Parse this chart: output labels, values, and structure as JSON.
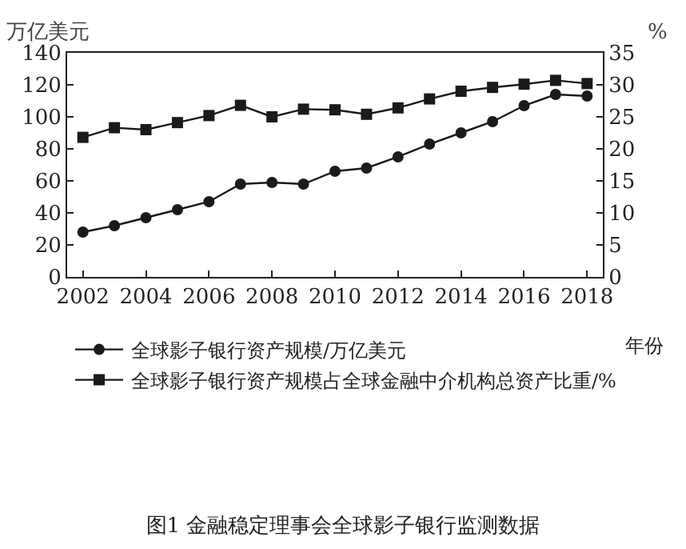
{
  "chart_data": {
    "type": "line",
    "title": "图1 金融稳定理事会全球影子银行监测数据",
    "xlabel": "年份",
    "ylabel": "万亿美元",
    "y2label": "%",
    "x": [
      2002,
      2003,
      2004,
      2005,
      2006,
      2007,
      2008,
      2009,
      2010,
      2011,
      2012,
      2013,
      2014,
      2015,
      2016,
      2017,
      2018
    ],
    "series": [
      {
        "name": "全球影子银行资产规模/万亿美元",
        "color": "#1a1a1a",
        "marker": "circle",
        "values": [
          28,
          32,
          37,
          42,
          47,
          58,
          59,
          58,
          66,
          68,
          75,
          83,
          90,
          97,
          107,
          114,
          113
        ]
      },
      {
        "name": "全球影子银行资产规模占全球金融中介机构总资产比重/%",
        "color": "#1a1a1a",
        "marker": "square",
        "axis": "y2",
        "values": [
          21.8,
          23.3,
          23,
          24.1,
          25.2,
          26.8,
          25,
          26.2,
          26.1,
          25.4,
          26.4,
          27.8,
          29,
          29.6,
          30.1,
          30.7,
          30.2
        ]
      }
    ],
    "xlim": [
      2001.5,
      2018.5
    ],
    "xticks": [
      2002,
      2004,
      2006,
      2008,
      2010,
      2012,
      2014,
      2016,
      2018
    ],
    "ylim": [
      0,
      140
    ],
    "yticks": [
      0,
      20,
      40,
      60,
      80,
      100,
      120,
      140
    ],
    "y2lim": [
      0,
      35
    ],
    "y2ticks": [
      0,
      5,
      10,
      15,
      20,
      25,
      30,
      35
    ],
    "grid": false,
    "legend": "bottom",
    "line_style": "solid"
  }
}
